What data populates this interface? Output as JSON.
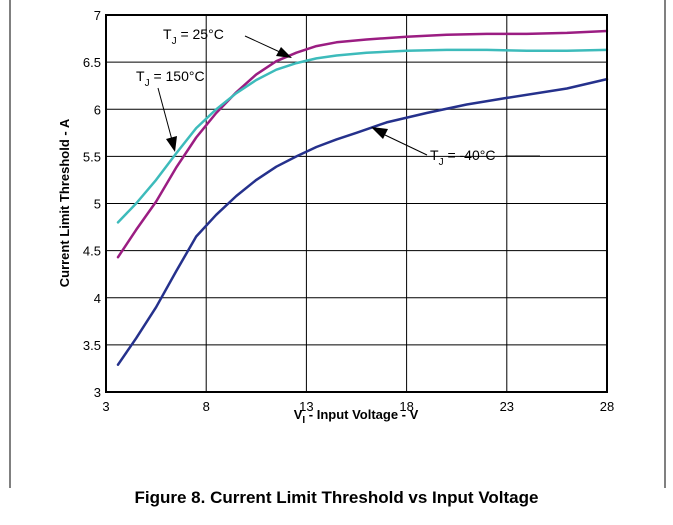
{
  "figure": {
    "caption": "Figure 8. Current Limit Threshold vs Input Voltage"
  },
  "chart_data": {
    "type": "line",
    "title": "",
    "xlabel": {
      "main": "V",
      "sub": "I",
      "rest": " - Input Voltage - V"
    },
    "ylabel": "Current Limit Threshold - A",
    "xlim": [
      3,
      28
    ],
    "ylim": [
      3,
      7
    ],
    "xticks": [
      3,
      8,
      13,
      18,
      23,
      28
    ],
    "yticks": [
      3,
      3.5,
      4,
      4.5,
      5,
      5.5,
      6,
      6.5,
      7
    ],
    "grid": true,
    "series": [
      {
        "name": "T_J = 25°C",
        "label": {
          "main": "T",
          "sub": "J",
          "rest": " = 25°C"
        },
        "color": "#9b1d82",
        "x": [
          3.6,
          4.5,
          5.5,
          6.5,
          7.5,
          8.5,
          9.5,
          10.5,
          11.5,
          12.5,
          13.5,
          14.5,
          16,
          18,
          20,
          22,
          24,
          26,
          28
        ],
        "y": [
          4.43,
          4.72,
          5.02,
          5.38,
          5.7,
          5.96,
          6.18,
          6.37,
          6.51,
          6.6,
          6.67,
          6.71,
          6.74,
          6.77,
          6.79,
          6.8,
          6.8,
          6.81,
          6.83
        ]
      },
      {
        "name": "T_J = 150°C",
        "label": {
          "main": "T",
          "sub": "J",
          "rest": " = 150°C"
        },
        "color": "#3dbbbb",
        "x": [
          3.6,
          4.5,
          5.5,
          6.5,
          7.5,
          8.5,
          9.5,
          10.5,
          11.5,
          12.5,
          13.5,
          14.5,
          16,
          18,
          20,
          22,
          24,
          26,
          28
        ],
        "y": [
          4.8,
          5.0,
          5.25,
          5.53,
          5.8,
          6.0,
          6.17,
          6.31,
          6.42,
          6.49,
          6.54,
          6.57,
          6.6,
          6.62,
          6.63,
          6.63,
          6.62,
          6.62,
          6.63
        ]
      },
      {
        "name": "T_J = -40°C",
        "label": {
          "main": "T",
          "sub": "J",
          "rest": " = -40°C"
        },
        "color": "#25318c",
        "x": [
          3.6,
          4.5,
          5.5,
          6.5,
          7.5,
          8.5,
          9.5,
          10.5,
          11.5,
          12.5,
          13.5,
          14.5,
          15.5,
          17,
          19,
          21,
          23,
          26,
          28
        ],
        "y": [
          3.29,
          3.57,
          3.9,
          4.28,
          4.65,
          4.88,
          5.08,
          5.25,
          5.39,
          5.5,
          5.6,
          5.68,
          5.75,
          5.86,
          5.96,
          6.05,
          6.12,
          6.22,
          6.32
        ]
      }
    ]
  }
}
